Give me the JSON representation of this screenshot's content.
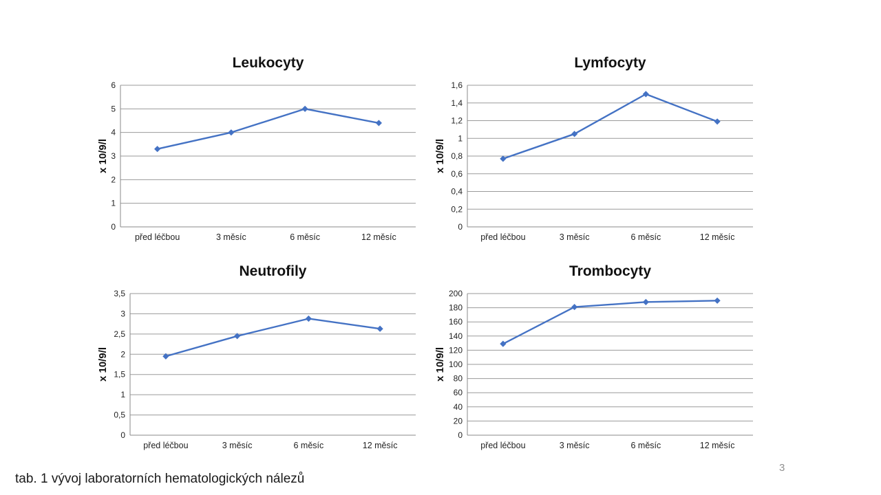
{
  "page": {
    "caption": "tab. 1 vývoj laboratorních hematologických nálezů",
    "page_number": "3",
    "background": "#ffffff"
  },
  "style": {
    "line_color": "#4472C4",
    "grid_color": "#9a9a9a",
    "axis_color": "#8a8a8a",
    "title_color": "#111111",
    "tick_color": "#222222"
  },
  "chart_data": [
    {
      "type": "line",
      "title": "Leukocyty",
      "ylabel": "x 10/9/l",
      "xlabel": "",
      "categories": [
        "před léčbou",
        "3 měsíc",
        "6 měsíc",
        "12 měsíc"
      ],
      "values": [
        3.3,
        4.0,
        5.0,
        4.4
      ],
      "ylim": [
        0,
        6
      ],
      "ytick_step": 1,
      "decimal_separator": ",",
      "grid": true,
      "legend": "none",
      "marker": "diamond"
    },
    {
      "type": "line",
      "title": "Lymfocyty",
      "ylabel": "x 10/9/l",
      "xlabel": "",
      "categories": [
        "před léčbou",
        "3 měsíc",
        "6 měsíc",
        "12 měsíc"
      ],
      "values": [
        0.77,
        1.05,
        1.5,
        1.19
      ],
      "ylim": [
        0,
        1.6
      ],
      "ytick_step": 0.2,
      "decimal_separator": ",",
      "grid": true,
      "legend": "none",
      "marker": "diamond"
    },
    {
      "type": "line",
      "title": "Neutrofily",
      "ylabel": "x 10/9/l",
      "xlabel": "",
      "categories": [
        "před léčbou",
        "3 měsíc",
        "6 měsíc",
        "12 měsíc"
      ],
      "values": [
        1.95,
        2.45,
        2.88,
        2.63
      ],
      "ylim": [
        0,
        3.5
      ],
      "ytick_step": 0.5,
      "decimal_separator": ",",
      "grid": true,
      "legend": "none",
      "marker": "diamond"
    },
    {
      "type": "line",
      "title": "Trombocyty",
      "ylabel": "x 10/9/l",
      "xlabel": "",
      "categories": [
        "před léčbou",
        "3 měsíc",
        "6 měsíc",
        "12 měsíc"
      ],
      "values": [
        129,
        181,
        188,
        190
      ],
      "ylim": [
        0,
        200
      ],
      "ytick_step": 20,
      "decimal_separator": ",",
      "grid": true,
      "legend": "none",
      "marker": "diamond"
    }
  ]
}
